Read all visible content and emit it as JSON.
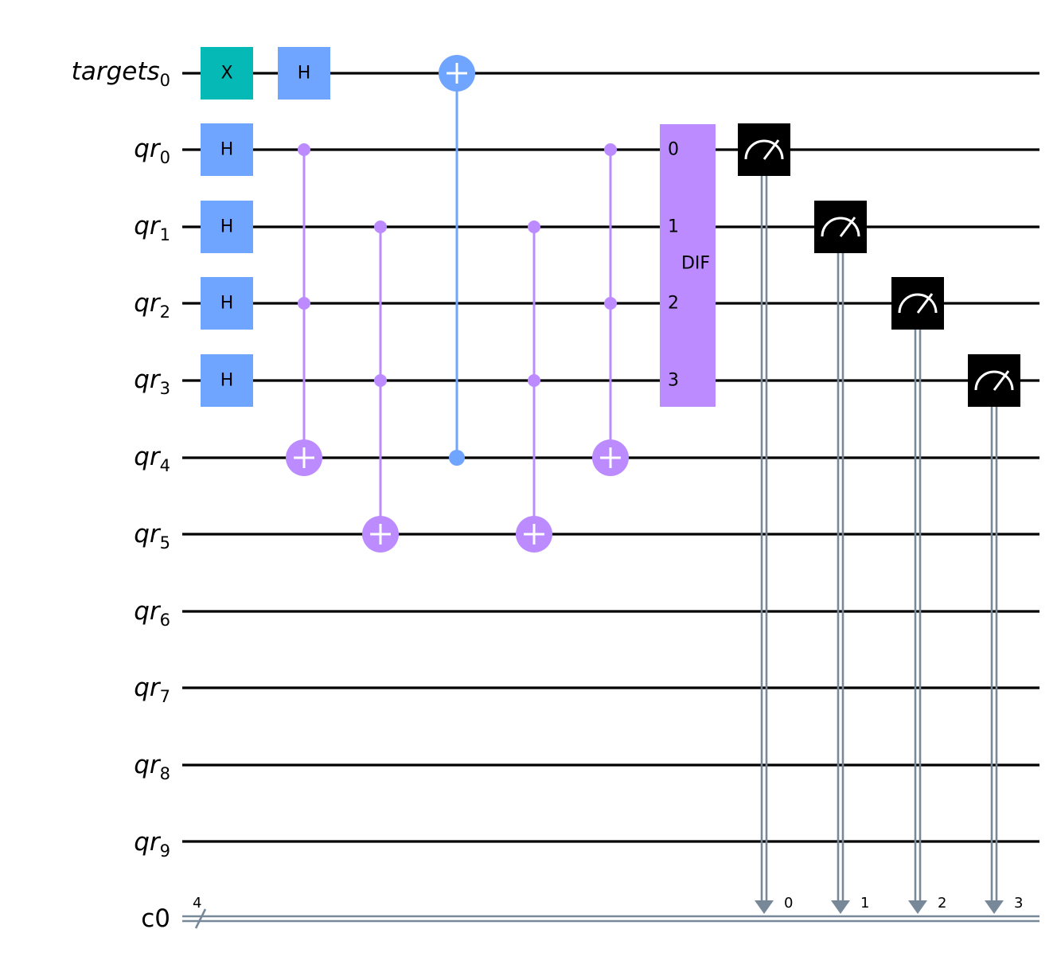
{
  "colors": {
    "x_gate": "#05bab6",
    "h_gate": "#6fa4ff",
    "ccx": "#bb8bff",
    "cx": "#6fa4ff",
    "dif": "#bb8bff",
    "measure": "#000000",
    "classical": "#778899",
    "wire": "#000000"
  },
  "registers": {
    "targets0": {
      "name": "targets",
      "sub": "0"
    },
    "qr0": {
      "name": "qr",
      "sub": "0"
    },
    "qr1": {
      "name": "qr",
      "sub": "1"
    },
    "qr2": {
      "name": "qr",
      "sub": "2"
    },
    "qr3": {
      "name": "qr",
      "sub": "3"
    },
    "qr4": {
      "name": "qr",
      "sub": "4"
    },
    "qr5": {
      "name": "qr",
      "sub": "5"
    },
    "qr6": {
      "name": "qr",
      "sub": "6"
    },
    "qr7": {
      "name": "qr",
      "sub": "7"
    },
    "qr8": {
      "name": "qr",
      "sub": "8"
    },
    "qr9": {
      "name": "qr",
      "sub": "9"
    },
    "c0": {
      "name": "c0",
      "width": "4"
    }
  },
  "gates": {
    "x_label": "X",
    "h_label": "H",
    "dif_label": "DIF",
    "dif_ports": [
      "0",
      "1",
      "2",
      "3"
    ]
  },
  "measure_bits": [
    "0",
    "1",
    "2",
    "3"
  ]
}
